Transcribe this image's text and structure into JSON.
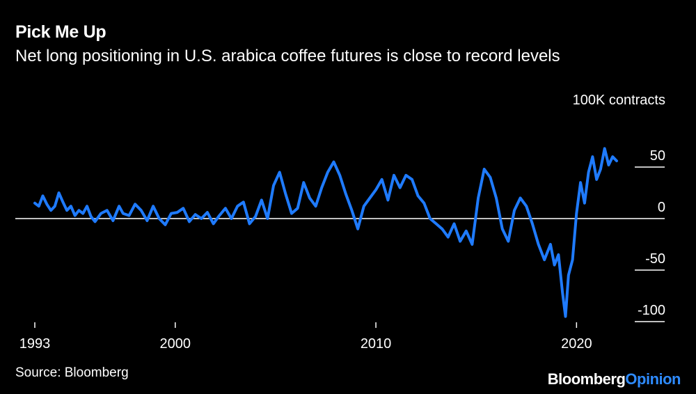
{
  "header": {
    "title": "Pick Me Up",
    "subtitle": "Net long positioning in U.S. arabica coffee futures is close to record levels"
  },
  "footer": {
    "source": "Source: Bloomberg",
    "logo_primary": "Bloomberg",
    "logo_accent": "Opinion"
  },
  "colors": {
    "background": "#000000",
    "line": "#1f7bff",
    "text": "#ffffff",
    "zero_line": "#ffffff",
    "logo_accent": "#2e8bff"
  },
  "chart_data": {
    "type": "line",
    "title": "Pick Me Up",
    "subtitle": "Net long positioning in U.S. arabica coffee futures is close to record levels",
    "ylabel": "100K contracts",
    "xlabel": "",
    "x_ticks": [
      "1993",
      "2000",
      "2010",
      "2020"
    ],
    "y_ticks": [
      {
        "value": 50,
        "label": "50"
      },
      {
        "value": 0,
        "label": "0"
      },
      {
        "value": -50,
        "label": "-50"
      },
      {
        "value": -100,
        "label": "-100"
      }
    ],
    "xlim": [
      1993,
      2022
    ],
    "ylim": [
      -100,
      70
    ],
    "y_axis_position": "right",
    "grid": false,
    "series": [
      {
        "values": [
          [
            1993.0,
            15
          ],
          [
            1993.2,
            12
          ],
          [
            1993.4,
            22
          ],
          [
            1993.6,
            14
          ],
          [
            1993.8,
            8
          ],
          [
            1994.0,
            12
          ],
          [
            1994.2,
            25
          ],
          [
            1994.4,
            16
          ],
          [
            1994.6,
            8
          ],
          [
            1994.8,
            12
          ],
          [
            1995.0,
            3
          ],
          [
            1995.2,
            8
          ],
          [
            1995.4,
            5
          ],
          [
            1995.6,
            12
          ],
          [
            1995.8,
            2
          ],
          [
            1996.0,
            -3
          ],
          [
            1996.3,
            5
          ],
          [
            1996.6,
            8
          ],
          [
            1996.9,
            -2
          ],
          [
            1997.2,
            12
          ],
          [
            1997.4,
            5
          ],
          [
            1997.7,
            3
          ],
          [
            1998.0,
            14
          ],
          [
            1998.3,
            8
          ],
          [
            1998.6,
            -2
          ],
          [
            1998.9,
            12
          ],
          [
            1999.2,
            0
          ],
          [
            1999.5,
            -6
          ],
          [
            1999.8,
            5
          ],
          [
            2000.1,
            6
          ],
          [
            2000.4,
            10
          ],
          [
            2000.7,
            -3
          ],
          [
            2001.0,
            4
          ],
          [
            2001.3,
            0
          ],
          [
            2001.6,
            6
          ],
          [
            2001.9,
            -5
          ],
          [
            2002.2,
            3
          ],
          [
            2002.5,
            10
          ],
          [
            2002.8,
            0
          ],
          [
            2003.1,
            12
          ],
          [
            2003.4,
            16
          ],
          [
            2003.7,
            -5
          ],
          [
            2004.0,
            2
          ],
          [
            2004.3,
            18
          ],
          [
            2004.6,
            0
          ],
          [
            2004.9,
            32
          ],
          [
            2005.2,
            45
          ],
          [
            2005.5,
            24
          ],
          [
            2005.8,
            5
          ],
          [
            2006.1,
            10
          ],
          [
            2006.4,
            35
          ],
          [
            2006.7,
            20
          ],
          [
            2007.0,
            12
          ],
          [
            2007.3,
            30
          ],
          [
            2007.6,
            45
          ],
          [
            2007.9,
            55
          ],
          [
            2008.2,
            42
          ],
          [
            2008.5,
            24
          ],
          [
            2008.8,
            8
          ],
          [
            2009.1,
            -10
          ],
          [
            2009.4,
            12
          ],
          [
            2009.7,
            20
          ],
          [
            2010.0,
            28
          ],
          [
            2010.3,
            38
          ],
          [
            2010.6,
            18
          ],
          [
            2010.9,
            42
          ],
          [
            2011.2,
            30
          ],
          [
            2011.5,
            42
          ],
          [
            2011.8,
            38
          ],
          [
            2012.1,
            22
          ],
          [
            2012.4,
            15
          ],
          [
            2012.7,
            0
          ],
          [
            2013.0,
            -5
          ],
          [
            2013.3,
            -10
          ],
          [
            2013.6,
            -18
          ],
          [
            2013.9,
            -5
          ],
          [
            2014.2,
            -22
          ],
          [
            2014.5,
            -12
          ],
          [
            2014.8,
            -25
          ],
          [
            2015.1,
            20
          ],
          [
            2015.4,
            48
          ],
          [
            2015.7,
            40
          ],
          [
            2016.0,
            20
          ],
          [
            2016.3,
            -10
          ],
          [
            2016.6,
            -22
          ],
          [
            2016.9,
            8
          ],
          [
            2017.2,
            20
          ],
          [
            2017.5,
            12
          ],
          [
            2017.8,
            -5
          ],
          [
            2018.1,
            -25
          ],
          [
            2018.4,
            -40
          ],
          [
            2018.7,
            -25
          ],
          [
            2018.9,
            -45
          ],
          [
            2019.1,
            -35
          ],
          [
            2019.3,
            -72
          ],
          [
            2019.45,
            -95
          ],
          [
            2019.6,
            -55
          ],
          [
            2019.8,
            -40
          ],
          [
            2020.0,
            5
          ],
          [
            2020.2,
            35
          ],
          [
            2020.4,
            15
          ],
          [
            2020.6,
            45
          ],
          [
            2020.8,
            60
          ],
          [
            2021.0,
            38
          ],
          [
            2021.2,
            48
          ],
          [
            2021.4,
            68
          ],
          [
            2021.6,
            52
          ],
          [
            2021.8,
            60
          ],
          [
            2022.0,
            56
          ]
        ]
      }
    ]
  }
}
